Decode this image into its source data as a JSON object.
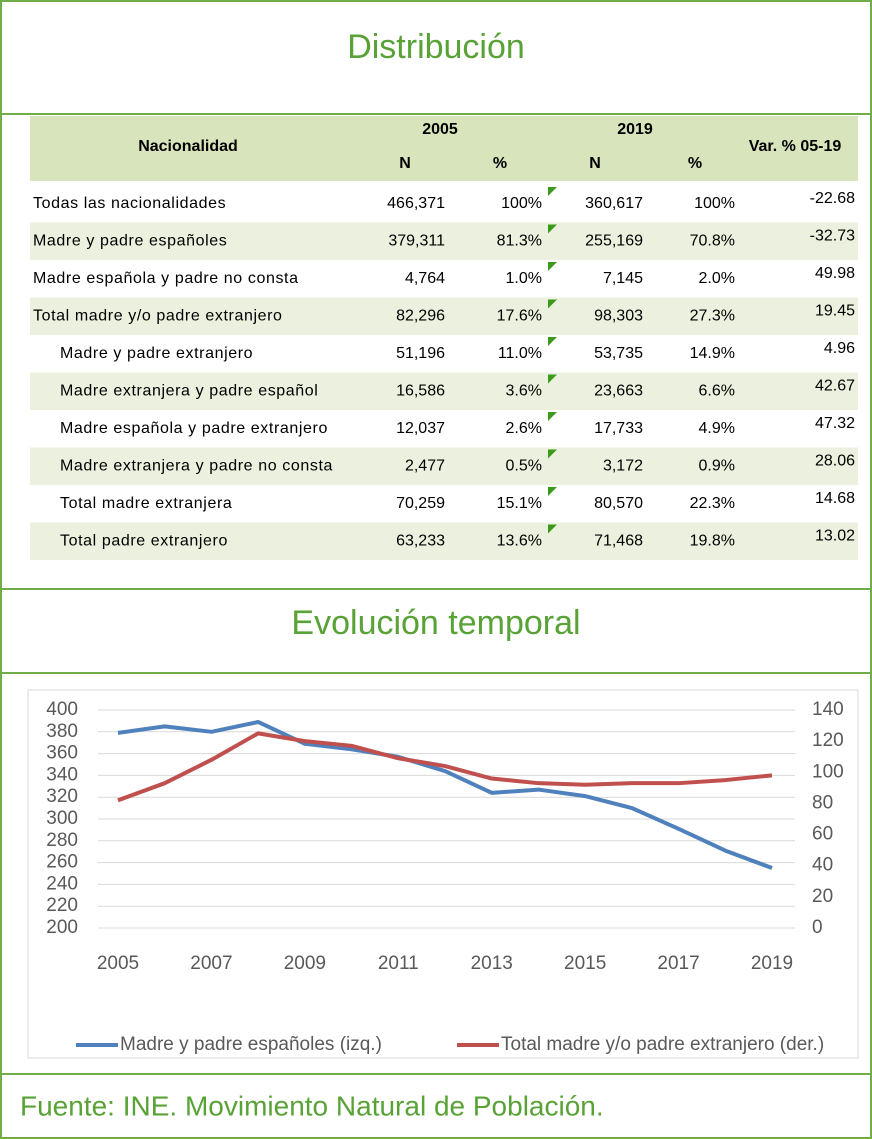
{
  "title": "Distribución",
  "table": {
    "header": [
      "Nacionalidad",
      "2005",
      "2019",
      "Var. % 05-19"
    ],
    "subheader": [
      "N",
      "%",
      "N",
      "%"
    ],
    "rows": [
      [
        "Todas las nacionalidades",
        "466,371",
        "100%",
        "360,617",
        "100%",
        "-22.68"
      ],
      [
        "Madre y padre españoles",
        "379,311",
        "81.3%",
        "255,169",
        "70.8%",
        "-32.73"
      ],
      [
        "Madre española y padre no consta",
        "4,764",
        "1.0%",
        "7,145",
        "2.0%",
        "49.98"
      ],
      [
        "Total madre y/o padre extranjero",
        "82,296",
        "17.6%",
        "98,303",
        "27.3%",
        "19.45"
      ],
      [
        "Madre y padre extranjero",
        "51,196",
        "11.0%",
        "53,735",
        "14.9%",
        "4.96"
      ],
      [
        "Madre extranjera y padre español",
        "16,586",
        "3.6%",
        "23,663",
        "6.6%",
        "42.67"
      ],
      [
        "Madre española y padre extranjero",
        "12,037",
        "2.6%",
        "17,733",
        "4.9%",
        "47.32"
      ],
      [
        "Madre extranjera y padre no consta",
        "2,477",
        "0.5%",
        "3,172",
        "0.9%",
        "28.06"
      ],
      [
        "Total madre extranjera",
        "70,259",
        "15.1%",
        "80,570",
        "22.3%",
        "14.68"
      ],
      [
        "Total padre extranjero",
        "63,233",
        "13.6%",
        "71,468",
        "19.8%",
        "13.02"
      ]
    ]
  },
  "chart_title": "Evolución temporal",
  "chart_data": {
    "type": "line",
    "x": [
      2005,
      2006,
      2007,
      2008,
      2009,
      2010,
      2011,
      2012,
      2013,
      2014,
      2015,
      2016,
      2017,
      2018,
      2019
    ],
    "xlim": [
      2005,
      2019
    ],
    "xticks": [
      2005,
      2007,
      2009,
      2011,
      2013,
      2015,
      2017,
      2019
    ],
    "ylim": [
      200,
      400
    ],
    "yticks": [
      200,
      220,
      240,
      260,
      280,
      300,
      320,
      340,
      360,
      380,
      400
    ],
    "y2lim": [
      0,
      140
    ],
    "y2ticks": [
      0,
      20,
      40,
      60,
      80,
      100,
      120,
      140
    ],
    "grid": true,
    "legend": "bottom",
    "series": [
      {
        "name": "Madre y padre españoles (izq.)",
        "color": "#4f81bd",
        "values": [
          379,
          385,
          380,
          389,
          369,
          364,
          357,
          344,
          324,
          327,
          321,
          310,
          291,
          271,
          255
        ]
      },
      {
        "name": "Total madre y/o padre extranjero (der.)",
        "color": "#c0504d",
        "axis": "y2",
        "values": [
          82,
          93,
          108,
          125,
          120,
          117,
          109,
          104,
          96,
          93,
          92,
          93,
          93,
          95,
          98
        ]
      }
    ]
  },
  "source": "Fuente: INE. Movimiento Natural de Población."
}
